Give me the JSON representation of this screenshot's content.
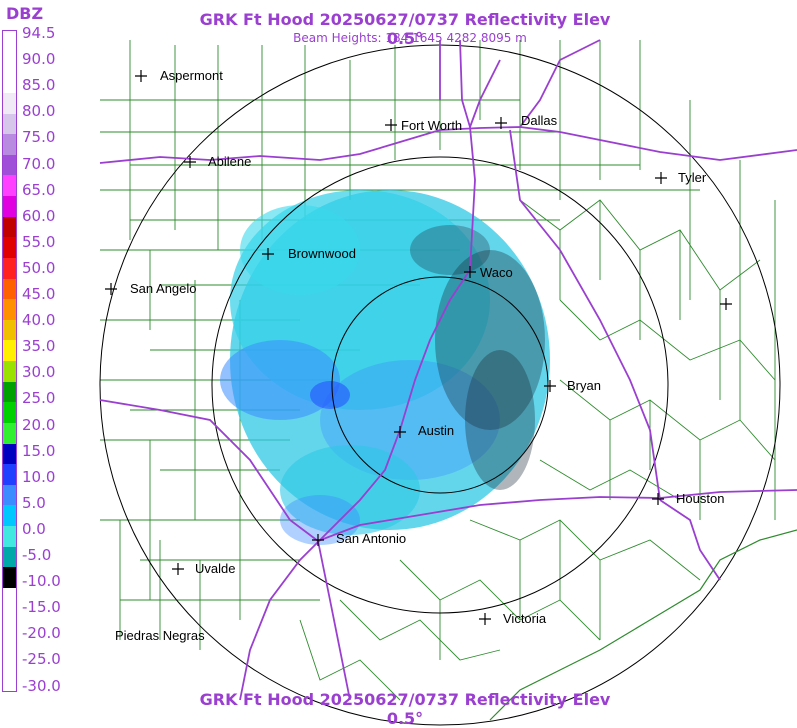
{
  "header": {
    "title": "GRK Ft Hood 20250627/0737 Reflectivity Elev 0.5°",
    "beam_heights": "Beam Heights: 184 1645 4282 8095 m",
    "footer_title": "GRK Ft Hood 20250627/0737 Reflectivity Elev 0.5°"
  },
  "legend": {
    "unit": "DBZ",
    "labels": [
      "94.5",
      "90.0",
      "85.0",
      "80.0",
      "75.0",
      "70.0",
      "65.0",
      "60.0",
      "55.0",
      "50.0",
      "45.0",
      "40.0",
      "35.0",
      "30.0",
      "25.0",
      "20.0",
      "15.0",
      "10.0",
      "5.0",
      "0.0",
      "-5.0",
      "-10.0",
      "-15.0",
      "-20.0",
      "-25.0",
      "-30.0"
    ],
    "colors": [
      "#ffffff",
      "#ffffff",
      "#ffffff",
      "#f0eaf6",
      "#d6c6ea",
      "#b88ae0",
      "#a050d8",
      "#ff40ff",
      "#e000e0",
      "#c00000",
      "#e00000",
      "#ff2020",
      "#ff6000",
      "#ff9000",
      "#f0c000",
      "#fff000",
      "#9ae000",
      "#00a000",
      "#00d000",
      "#30f030",
      "#0000c0",
      "#2040ff",
      "#3a8cff",
      "#00c8ff",
      "#40e8e0",
      "#00a8a8",
      "#000000",
      "#ffffff",
      "#ffffff",
      "#ffffff",
      "#ffffff",
      "#ffffff"
    ]
  },
  "map": {
    "cities": [
      {
        "name": "Aspermont"
      },
      {
        "name": "Fort Worth"
      },
      {
        "name": "Dallas"
      },
      {
        "name": "Abilene"
      },
      {
        "name": "Tyler"
      },
      {
        "name": "Brownwood"
      },
      {
        "name": "Waco"
      },
      {
        "name": "San Angelo"
      },
      {
        "name": "Bryan"
      },
      {
        "name": "Austin"
      },
      {
        "name": "Houston"
      },
      {
        "name": "San Antonio"
      },
      {
        "name": "Uvalde"
      },
      {
        "name": "Victoria"
      },
      {
        "name": "Piedras Negras"
      },
      {
        "name": ""
      }
    ]
  }
}
